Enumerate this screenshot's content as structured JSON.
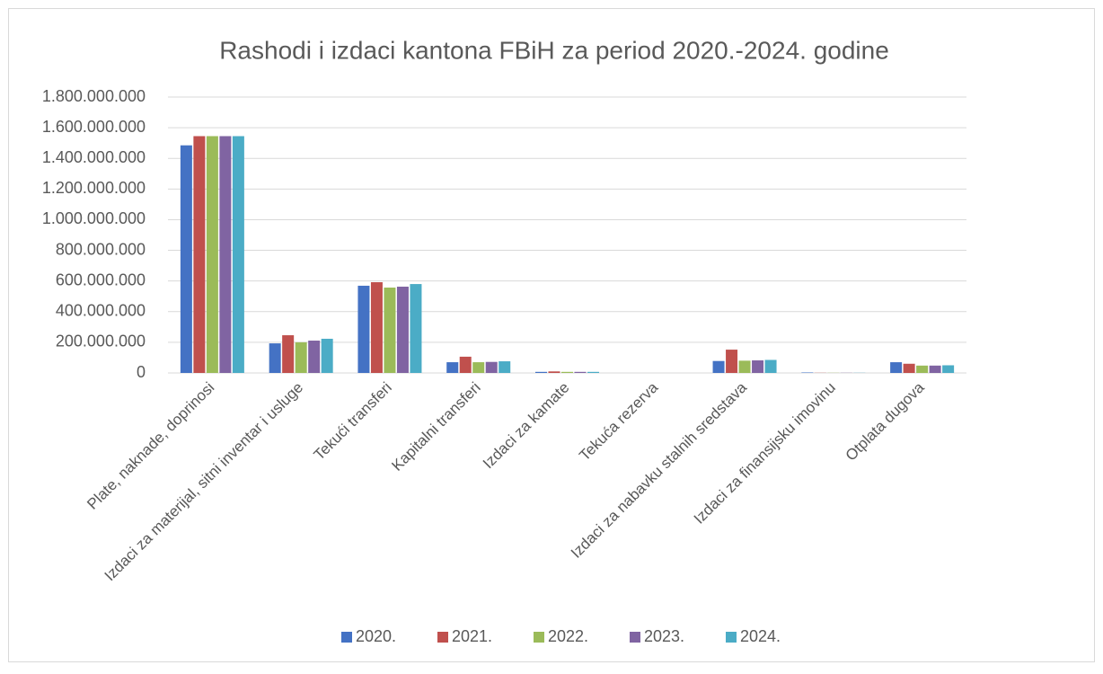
{
  "chart_data": {
    "type": "bar",
    "title": "Rashodi i izdaci kantona FBiH za period 2020.-2024. godine",
    "categories": [
      "Plate, naknade, doprinosi",
      "Izdaci za materijal, sitni inventar i usluge",
      "Tekući transferi",
      "Kapitalni transferi",
      "Izdaci za kamate",
      "Tekuća rezerva",
      "Izdaci za nabavku stalnih sredstava",
      "Izdaci za finansijsku imovinu",
      "Otplata dugova"
    ],
    "series": [
      {
        "name": "2020.",
        "color": "#4472c4",
        "values": [
          1485000000,
          193000000,
          569000000,
          70000000,
          7000000,
          0,
          78000000,
          3000000,
          70000000
        ]
      },
      {
        "name": "2021.",
        "color": "#c0504d",
        "values": [
          1545000000,
          246000000,
          592000000,
          106000000,
          10000000,
          0,
          152000000,
          1000000,
          60000000
        ]
      },
      {
        "name": "2022.",
        "color": "#9bbb59",
        "values": [
          1545000000,
          200000000,
          557000000,
          70000000,
          7000000,
          0,
          80000000,
          1000000,
          48000000
        ]
      },
      {
        "name": "2023.",
        "color": "#8064a2",
        "values": [
          1545000000,
          211000000,
          563000000,
          72000000,
          7000000,
          0,
          82000000,
          1000000,
          48000000
        ]
      },
      {
        "name": "2024.",
        "color": "#4bacc6",
        "values": [
          1545000000,
          223000000,
          580000000,
          76000000,
          7000000,
          0,
          85000000,
          1000000,
          50000000
        ]
      }
    ],
    "ylim": [
      0,
      1800000000
    ],
    "yticks": [
      0,
      {
        "value": 200000000,
        "label": "200.000.000"
      },
      {
        "value": 400000000,
        "label": "400.000.000"
      },
      {
        "value": 600000000,
        "label": "600.000.000"
      },
      {
        "value": 800000000,
        "label": "800.000.000"
      },
      {
        "value": 1000000000,
        "label": "1.000.000.000"
      },
      {
        "value": 1200000000,
        "label": "1.200.000.000"
      },
      {
        "value": 1400000000,
        "label": "1.400.000.000"
      },
      {
        "value": 1600000000,
        "label": "1.600.000.000"
      },
      {
        "value": 1800000000,
        "label": "1.800.000.000"
      }
    ],
    "grid": true,
    "legend": "bottom"
  }
}
